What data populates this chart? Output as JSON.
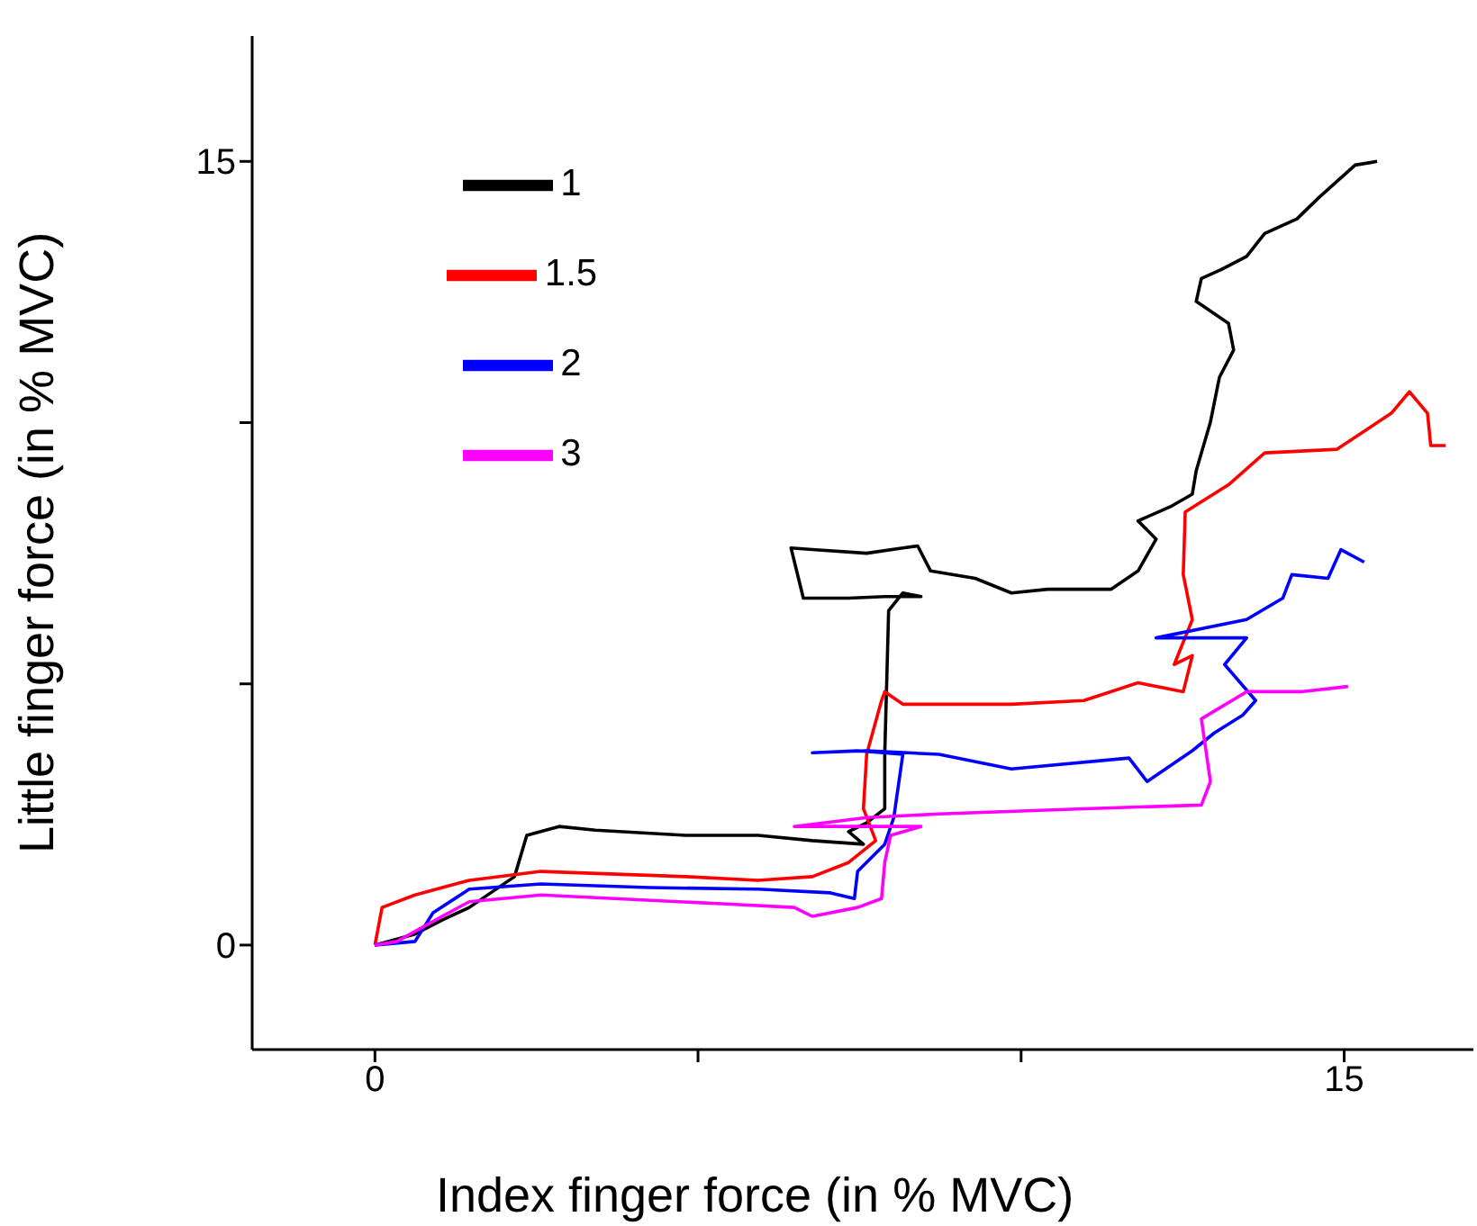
{
  "chart_data": {
    "type": "line",
    "xlabel": "Index finger force (in % MVC)",
    "ylabel": "Little finger force (in % MVC)",
    "xlim": [
      -1.9,
      17
    ],
    "ylim": [
      -2,
      17.4
    ],
    "xticks": [
      0,
      {
        "value": 5,
        "label": null
      },
      {
        "value": 10,
        "label": null
      },
      15
    ],
    "yticks": [
      0,
      {
        "value": 5,
        "label": null
      },
      {
        "value": 10,
        "label": null
      },
      15
    ],
    "legend": "top left",
    "marker": "none",
    "line_style": "solid",
    "series": [
      {
        "name": "1",
        "color": "#000000",
        "x": [
          0,
          0.62,
          1.04,
          1.46,
          2.16,
          2.35,
          2.85,
          3.41,
          4.81,
          5.93,
          6.77,
          7.56,
          7.33,
          7.61,
          7.89,
          7.89,
          7.92,
          7.95,
          8.17,
          8.45,
          7.89,
          7.33,
          6.63,
          6.44,
          6.77,
          7.61,
          8.17,
          8.4,
          8.6,
          9.29,
          9.85,
          10.41,
          11.39,
          11.81,
          12.09,
          11.81,
          12.31,
          12.65,
          12.71,
          12.93,
          13.07,
          13.29,
          13.21,
          12.71,
          12.79,
          13.1,
          13.49,
          13.77,
          14.27,
          14.61,
          15.17,
          15.51
        ],
        "values": [
          0,
          0.21,
          0.48,
          0.72,
          1.31,
          2.1,
          2.27,
          2.2,
          2.1,
          2.1,
          2.0,
          1.93,
          2.17,
          2.34,
          2.61,
          3.65,
          5.02,
          6.4,
          6.74,
          6.67,
          6.67,
          6.64,
          6.64,
          7.6,
          7.57,
          7.5,
          7.6,
          7.64,
          7.16,
          7.02,
          6.74,
          6.81,
          6.81,
          7.16,
          7.77,
          8.12,
          8.39,
          8.63,
          9.08,
          10.01,
          10.87,
          11.39,
          11.9,
          12.32,
          12.76,
          12.93,
          13.18,
          13.62,
          13.9,
          14.31,
          14.93,
          15.0
        ]
      },
      {
        "name": "1.5",
        "color": "#ff0000",
        "x": [
          0,
          0.11,
          0.62,
          1.46,
          2.57,
          4.81,
          5.93,
          6.77,
          7.33,
          7.75,
          7.56,
          7.61,
          7.84,
          7.89,
          8.17,
          9.85,
          10.97,
          11.81,
          12.51,
          12.65,
          12.37,
          12.65,
          12.51,
          12.54,
          13.21,
          13.77,
          14.89,
          15.73,
          16.01,
          16.29,
          16.34,
          16.57
        ],
        "values": [
          0,
          0.72,
          0.96,
          1.24,
          1.41,
          1.31,
          1.24,
          1.31,
          1.58,
          2.0,
          2.61,
          3.65,
          4.68,
          4.85,
          4.61,
          4.61,
          4.68,
          5.02,
          4.85,
          5.54,
          5.37,
          6.23,
          7.09,
          8.29,
          8.81,
          9.42,
          9.49,
          10.18,
          10.59,
          10.18,
          9.56,
          9.56
        ]
      },
      {
        "name": "2",
        "color": "#0000ff",
        "x": [
          0,
          0.62,
          0.9,
          1.46,
          2.57,
          4.25,
          5.93,
          7.05,
          7.42,
          7.47,
          7.89,
          8.03,
          8.17,
          7.47,
          6.77,
          7.61,
          8.73,
          9.85,
          11.67,
          11.95,
          12.65,
          12.99,
          13.43,
          13.63,
          13.15,
          13.49,
          12.09,
          13.49,
          14.05,
          14.19,
          14.75,
          14.95,
          15.31
        ],
        "values": [
          0,
          0.07,
          0.62,
          1.07,
          1.17,
          1.1,
          1.07,
          1.0,
          0.89,
          1.41,
          1.93,
          2.44,
          3.65,
          3.72,
          3.68,
          3.72,
          3.65,
          3.37,
          3.58,
          3.13,
          3.72,
          4.06,
          4.4,
          4.68,
          5.37,
          5.88,
          5.88,
          6.23,
          6.64,
          7.09,
          7.02,
          7.57,
          7.33
        ]
      },
      {
        "name": "3",
        "color": "#ff00ff",
        "x": [
          0,
          0.34,
          1.04,
          1.46,
          2.57,
          5.37,
          6.49,
          6.77,
          7.47,
          7.84,
          7.89,
          7.98,
          8.45,
          7.05,
          6.49,
          7.61,
          8.73,
          10.97,
          12.79,
          12.93,
          12.79,
          13.49,
          14.33,
          15.06
        ],
        "values": [
          0,
          0.07,
          0.55,
          0.83,
          0.96,
          0.79,
          0.72,
          0.55,
          0.72,
          0.89,
          1.58,
          2.1,
          2.27,
          2.27,
          2.27,
          2.44,
          2.51,
          2.61,
          2.68,
          3.13,
          4.33,
          4.85,
          4.85,
          4.95
        ]
      }
    ]
  }
}
